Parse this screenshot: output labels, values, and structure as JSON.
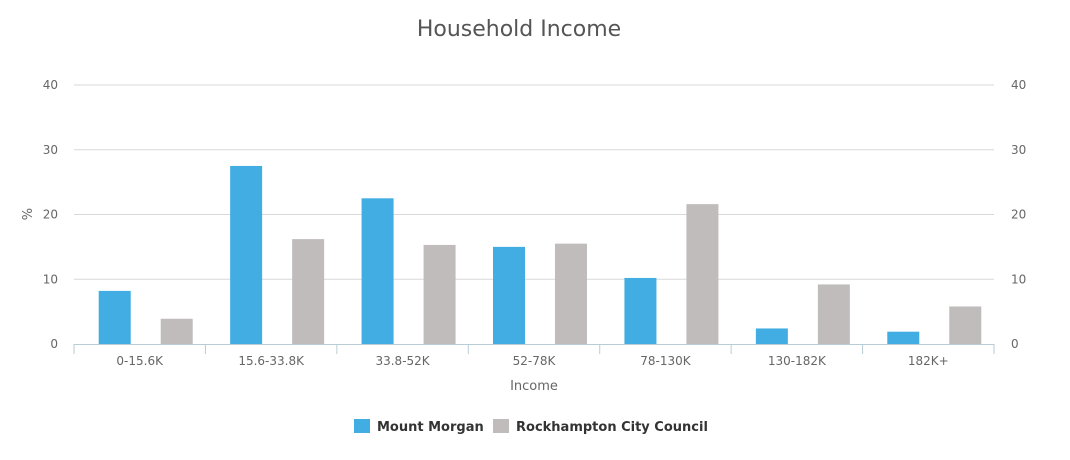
{
  "chart_data": {
    "type": "bar",
    "title": "Household Income",
    "xlabel": "Income",
    "ylabel": "%",
    "ylim": [
      0,
      40
    ],
    "yticks": [
      0,
      10,
      20,
      30,
      40
    ],
    "grid": true,
    "legend_position": "bottom",
    "categories": [
      "0-15.6K",
      "15.6-33.8K",
      "33.8-52K",
      "52-78K",
      "78-130K",
      "130-182K",
      "182K+"
    ],
    "series": [
      {
        "name": "Mount Morgan",
        "color": "#41ade2",
        "values": [
          8.2,
          27.5,
          22.5,
          15.0,
          10.2,
          2.4,
          1.9
        ]
      },
      {
        "name": "Rockhampton City Council",
        "color": "#c1bcbc",
        "values": [
          3.9,
          16.2,
          15.3,
          15.5,
          21.6,
          9.2,
          5.8
        ]
      }
    ]
  }
}
